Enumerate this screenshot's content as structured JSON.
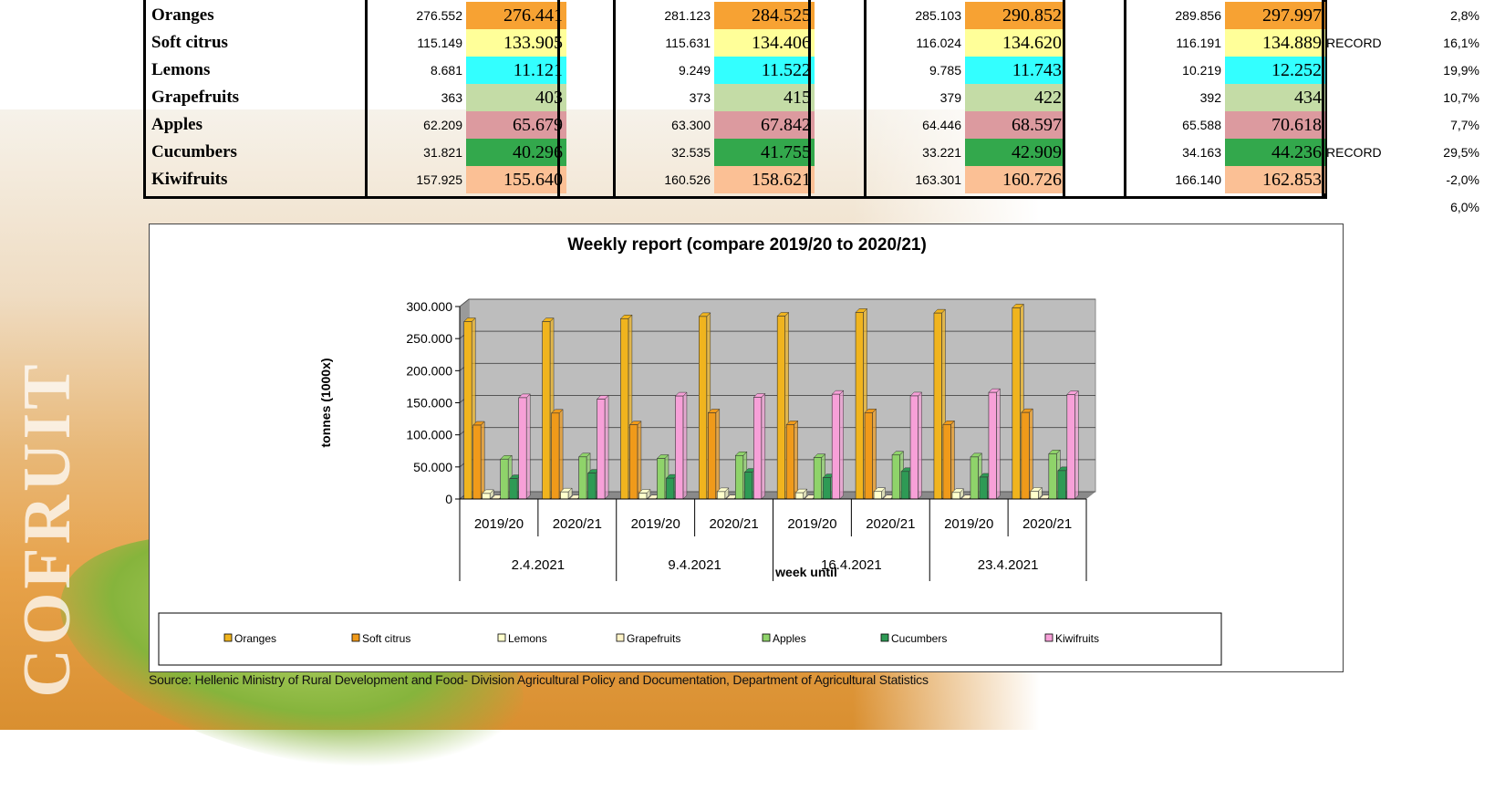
{
  "background": {
    "watermark_text": "COFRUIT"
  },
  "table": {
    "rows": [
      {
        "name": "Oranges",
        "color": "#f7a233",
        "values": [
          "276.552",
          "276.441",
          "281.123",
          "284.525",
          "285.103",
          "290.852",
          "289.856",
          "297.997"
        ],
        "note": "",
        "pct": "2,8%"
      },
      {
        "name": "Soft citrus",
        "color": "#ffff99",
        "values": [
          "115.149",
          "133.905",
          "115.631",
          "134.406",
          "116.024",
          "134.620",
          "116.191",
          "134.889"
        ],
        "note": "RECORD",
        "pct": "16,1%"
      },
      {
        "name": "Lemons",
        "color": "#33ffff",
        "values": [
          "8.681",
          "11.121",
          "9.249",
          "11.522",
          "9.785",
          "11.743",
          "10.219",
          "12.252"
        ],
        "note": "",
        "pct": "19,9%"
      },
      {
        "name": "Grapefruits",
        "color": "#c4dca6",
        "values": [
          "363",
          "403",
          "373",
          "415",
          "379",
          "422",
          "392",
          "434"
        ],
        "note": "",
        "pct": "10,7%"
      },
      {
        "name": "Apples",
        "color": "#dc9a9f",
        "values": [
          "62.209",
          "65.679",
          "63.300",
          "67.842",
          "64.446",
          "68.597",
          "65.588",
          "70.618"
        ],
        "note": "",
        "pct": "7,7%"
      },
      {
        "name": "Cucumbers",
        "color": "#33a84c",
        "values": [
          "31.821",
          "40.296",
          "32.535",
          "41.755",
          "33.221",
          "42.909",
          "34.163",
          "44.236"
        ],
        "note": "RECORD",
        "pct": "29,5%"
      },
      {
        "name": "Kiwifruits",
        "color": "#fbc095",
        "values": [
          "157.925",
          "155.640",
          "160.526",
          "158.621",
          "163.301",
          "160.726",
          "166.140",
          "162.853"
        ],
        "note": "",
        "pct": "-2,0%"
      }
    ],
    "total_pct": "6,0%"
  },
  "source": "Source: Hellenic Ministry of Rural Development and Food- Division Agricultural Policy and Documentation, Department of Agricultural Statistics",
  "chart_data": {
    "type": "bar",
    "title": "Weekly report (compare 2019/20 to 2020/21)",
    "ylabel": "tonnes (1000x)",
    "xlabel": "week until",
    "ylim": [
      0,
      300000
    ],
    "yticks": [
      "0",
      "50.000",
      "100.000",
      "150.000",
      "200.000",
      "250.000",
      "300.000"
    ],
    "categories": [
      "2019/20",
      "2020/21",
      "2019/20",
      "2020/21",
      "2019/20",
      "2020/21",
      "2019/20",
      "2020/21"
    ],
    "groups": [
      "2.4.2021",
      "9.4.2021",
      "16.4.2021",
      "23.4.2021"
    ],
    "legend_position": "bottom",
    "grid": true,
    "series": [
      {
        "name": "Oranges",
        "color": "#f0b41e",
        "values": [
          276552,
          276441,
          281123,
          284525,
          285103,
          290852,
          289856,
          297997
        ]
      },
      {
        "name": "Soft citrus",
        "color": "#f09a1a",
        "values": [
          115149,
          133905,
          115631,
          134406,
          116024,
          134620,
          116191,
          134889
        ]
      },
      {
        "name": "Lemons",
        "color": "#ffffcc",
        "values": [
          8681,
          11121,
          9249,
          11522,
          9785,
          11743,
          10219,
          12252
        ]
      },
      {
        "name": "Grapefruits",
        "color": "#fff4c8",
        "values": [
          363,
          403,
          373,
          415,
          379,
          422,
          392,
          434
        ]
      },
      {
        "name": "Apples",
        "color": "#8fd36a",
        "values": [
          62209,
          65679,
          63300,
          67842,
          64446,
          68597,
          65588,
          70618
        ]
      },
      {
        "name": "Cucumbers",
        "color": "#2e9a55",
        "values": [
          31821,
          40296,
          32535,
          41755,
          33221,
          42909,
          34163,
          44236
        ]
      },
      {
        "name": "Kiwifruits",
        "color": "#f7a0d8",
        "values": [
          157925,
          155640,
          160526,
          158621,
          163301,
          160726,
          166140,
          162853
        ]
      }
    ]
  }
}
